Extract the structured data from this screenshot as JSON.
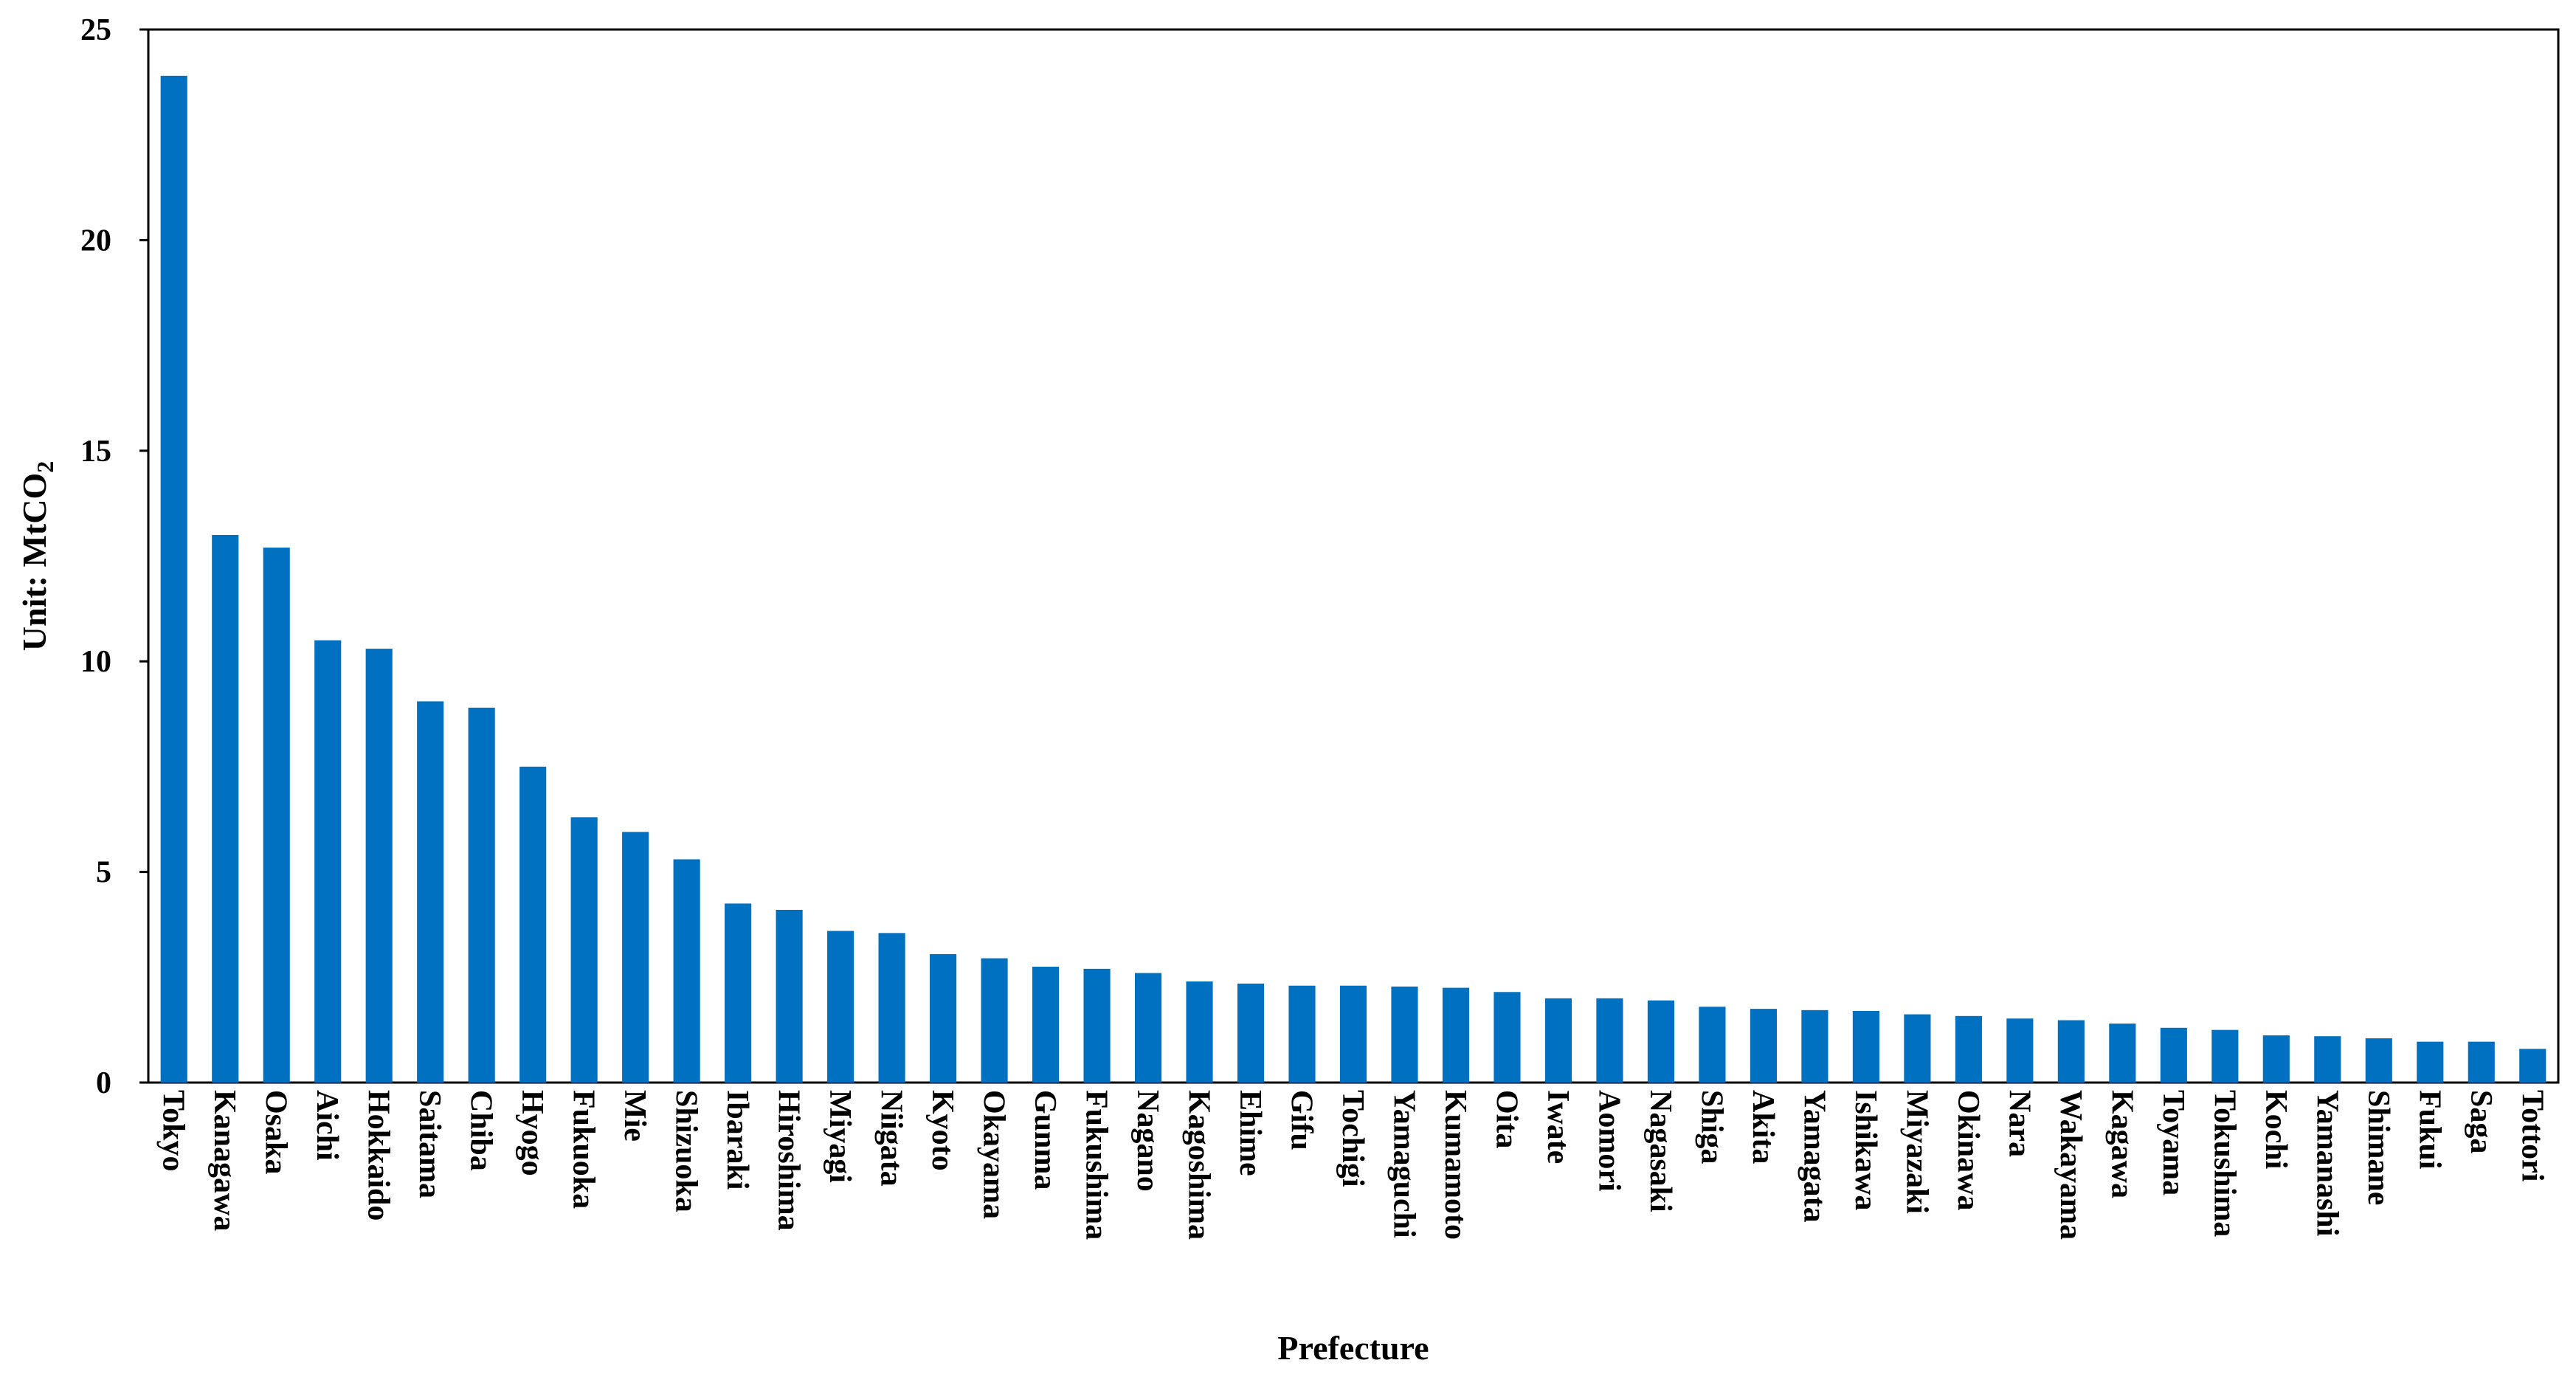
{
  "chart_data": {
    "type": "bar",
    "xlabel": "Prefecture",
    "ylabel_main": "Unit: MtCO",
    "ylabel_sub": "2",
    "ylim": [
      0,
      25
    ],
    "yticks": [
      0,
      5,
      10,
      15,
      20,
      25
    ],
    "grid": false,
    "legend": "none",
    "bar_color": "#0070C0",
    "categories": [
      "Tokyo",
      "Kanagawa",
      "Osaka",
      "Aichi",
      "Hokkaido",
      "Saitama",
      "Chiba",
      "Hyogo",
      "Fukuoka",
      "Mie",
      "Shizuoka",
      "Ibaraki",
      "Hiroshima",
      "Miyagi",
      "Niigata",
      "Kyoto",
      "Okayama",
      "Gunma",
      "Fukushima",
      "Nagano",
      "Kagoshima",
      "Ehime",
      "Gifu",
      "Tochigi",
      "Yamaguchi",
      "Kumamoto",
      "Oita",
      "Iwate",
      "Aomori",
      "Nagasaki",
      "Shiga",
      "Akita",
      "Yamagata",
      "Ishikawa",
      "Miyazaki",
      "Okinawa",
      "Nara",
      "Wakayama",
      "Kagawa",
      "Toyama",
      "Tokushima",
      "Kochi",
      "Yamanashi",
      "Shimane",
      "Fukui",
      "Saga",
      "Tottori"
    ],
    "values": [
      23.9,
      13.0,
      12.7,
      10.5,
      10.3,
      9.05,
      8.9,
      7.5,
      6.3,
      5.95,
      5.3,
      4.25,
      4.1,
      3.6,
      3.55,
      3.05,
      2.95,
      2.75,
      2.7,
      2.6,
      2.4,
      2.35,
      2.3,
      2.3,
      2.28,
      2.25,
      2.15,
      2.0,
      2.0,
      1.95,
      1.8,
      1.75,
      1.72,
      1.7,
      1.62,
      1.58,
      1.52,
      1.48,
      1.4,
      1.3,
      1.25,
      1.12,
      1.1,
      1.05,
      0.97,
      0.97,
      0.8
    ]
  }
}
